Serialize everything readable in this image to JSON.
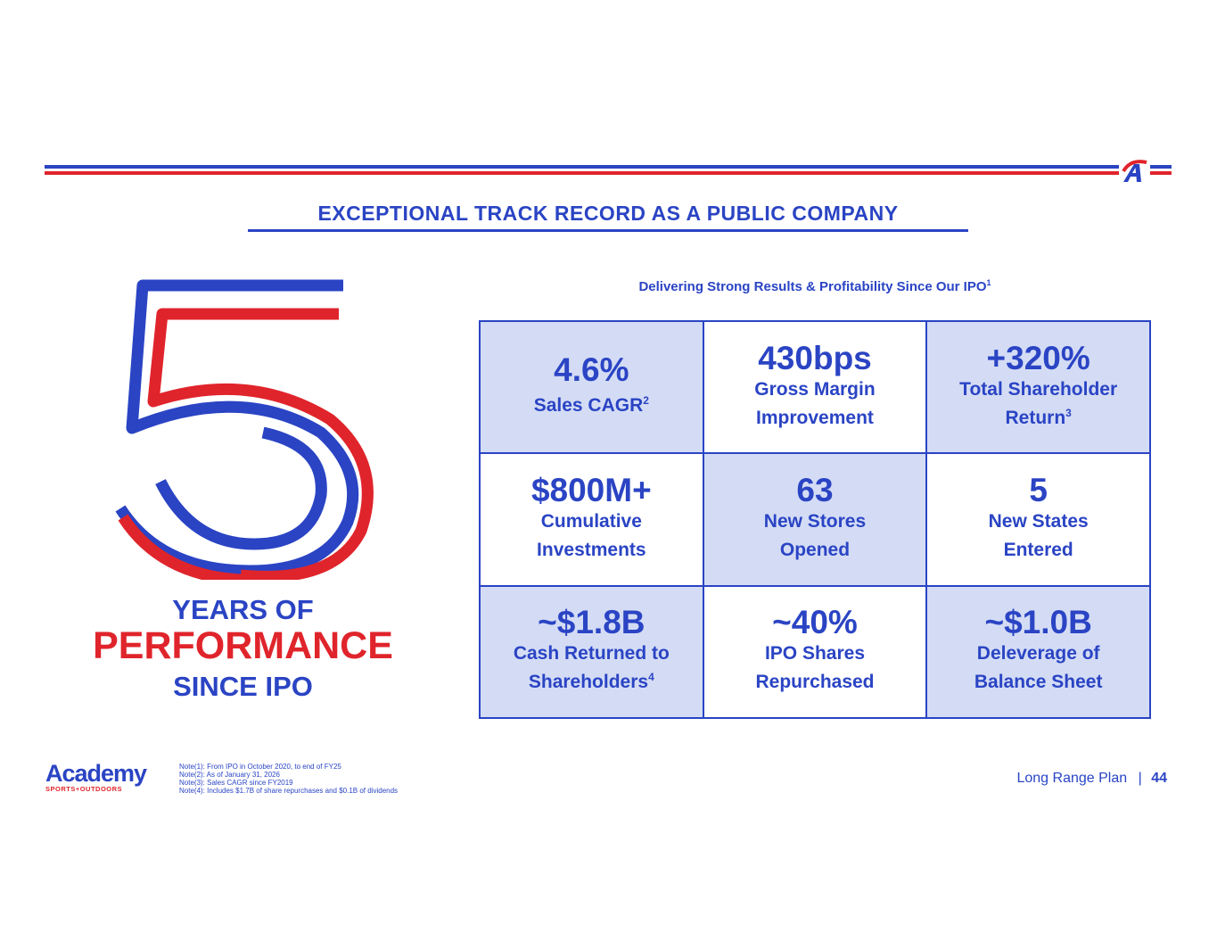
{
  "header": {
    "title": "EXCEPTIONAL TRACK RECORD AS A PUBLIC COMPANY",
    "subtitle": "Delivering Strong Results & Profitability Since Our IPO",
    "subtitle_sup": "1"
  },
  "hero": {
    "number": "5",
    "line1": "YEARS OF",
    "line2": "PERFORMANCE",
    "line3": "SINCE IPO"
  },
  "metrics": [
    {
      "value": "4.6%",
      "label": "Sales CAGR",
      "sup": "2"
    },
    {
      "value": "430bps",
      "label": "Gross Margin\nImprovement",
      "sup": ""
    },
    {
      "value": "+320%",
      "label": "Total Shareholder\nReturn",
      "sup": "3"
    },
    {
      "value": "$800M+",
      "label": "Cumulative\nInvestments",
      "sup": ""
    },
    {
      "value": "63",
      "label": "New Stores\nOpened",
      "sup": ""
    },
    {
      "value": "5",
      "label": "New States\nEntered",
      "sup": ""
    },
    {
      "value": "~$1.8B",
      "label": "Cash Returned to\nShareholders",
      "sup": "4"
    },
    {
      "value": "~40%",
      "label": "IPO Shares\nRepurchased",
      "sup": ""
    },
    {
      "value": "~$1.0B",
      "label": "Deleverage of\nBalance Sheet",
      "sup": ""
    }
  ],
  "notes": [
    "Note(1): From IPO in October 2020, to end of FY25",
    "Note(2): As of January 31, 2026",
    "Note(3): Sales CAGR since FY2019",
    "Note(4): Includes $1.7B of share repurchases and $0.1B of dividends"
  ],
  "logo": {
    "name": "Academy",
    "tagline": "SPORTS+OUTDOORS"
  },
  "footer": {
    "label": "Long Range Plan",
    "separator": "|",
    "page": "44"
  },
  "colors": {
    "blue": "#2a44c4",
    "red": "#e0242b",
    "shade": "#d4dcf5"
  }
}
